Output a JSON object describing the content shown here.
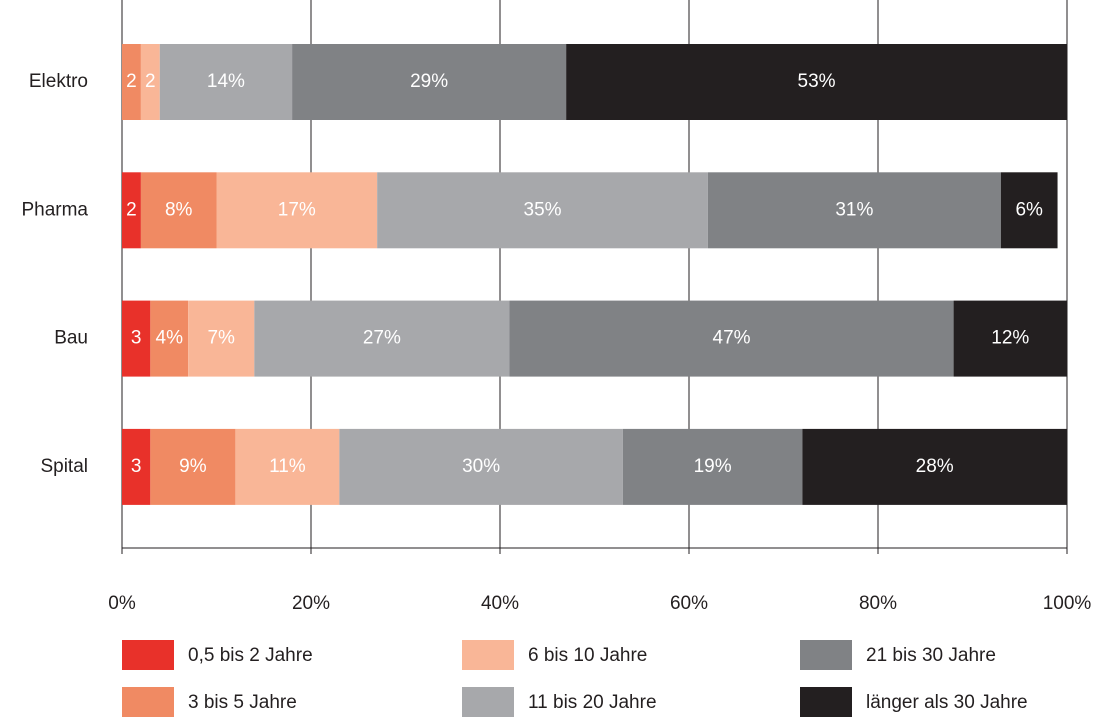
{
  "chart_data": {
    "type": "stacked_barh",
    "categories": [
      "Elektro",
      "Pharma",
      "Bau",
      "Spital"
    ],
    "series": [
      {
        "name": "0,5 bis 2 Jahre",
        "color": "#e8312a",
        "values": [
          null,
          2,
          3,
          3
        ],
        "value_labels": [
          null,
          "2",
          "3",
          "3"
        ]
      },
      {
        "name": "3 bis 5 Jahre",
        "color": "#f08a63",
        "values": [
          2,
          8,
          4,
          9
        ],
        "value_labels": [
          "2",
          "8%",
          "4%",
          "9%"
        ]
      },
      {
        "name": "6 bis 10 Jahre",
        "color": "#f9b697",
        "values": [
          2,
          17,
          7,
          11
        ],
        "value_labels": [
          "2",
          "17%",
          "7%",
          "11%"
        ]
      },
      {
        "name": "11 bis 20 Jahre",
        "color": "#a7a8ab",
        "values": [
          14,
          35,
          27,
          30
        ],
        "value_labels": [
          "14%",
          "35%",
          "27%",
          "30%"
        ]
      },
      {
        "name": "21 bis 30 Jahre",
        "color": "#808285",
        "values": [
          29,
          31,
          47,
          19
        ],
        "value_labels": [
          "29%",
          "31%",
          "47%",
          "19%"
        ]
      },
      {
        "name": "länger als 30 Jahre",
        "color": "#231f20",
        "values": [
          53,
          6,
          12,
          28
        ],
        "value_labels": [
          "53%",
          "6%",
          "12%",
          "28%"
        ]
      }
    ],
    "xlim": [
      0,
      100
    ],
    "xticks": [
      {
        "value": 0,
        "label": "0%"
      },
      {
        "value": 20,
        "label": "20%"
      },
      {
        "value": 40,
        "label": "40%"
      },
      {
        "value": 60,
        "label": "60%"
      },
      {
        "value": 80,
        "label": "80%"
      },
      {
        "value": 100,
        "label": "100%"
      }
    ],
    "grid": true
  }
}
